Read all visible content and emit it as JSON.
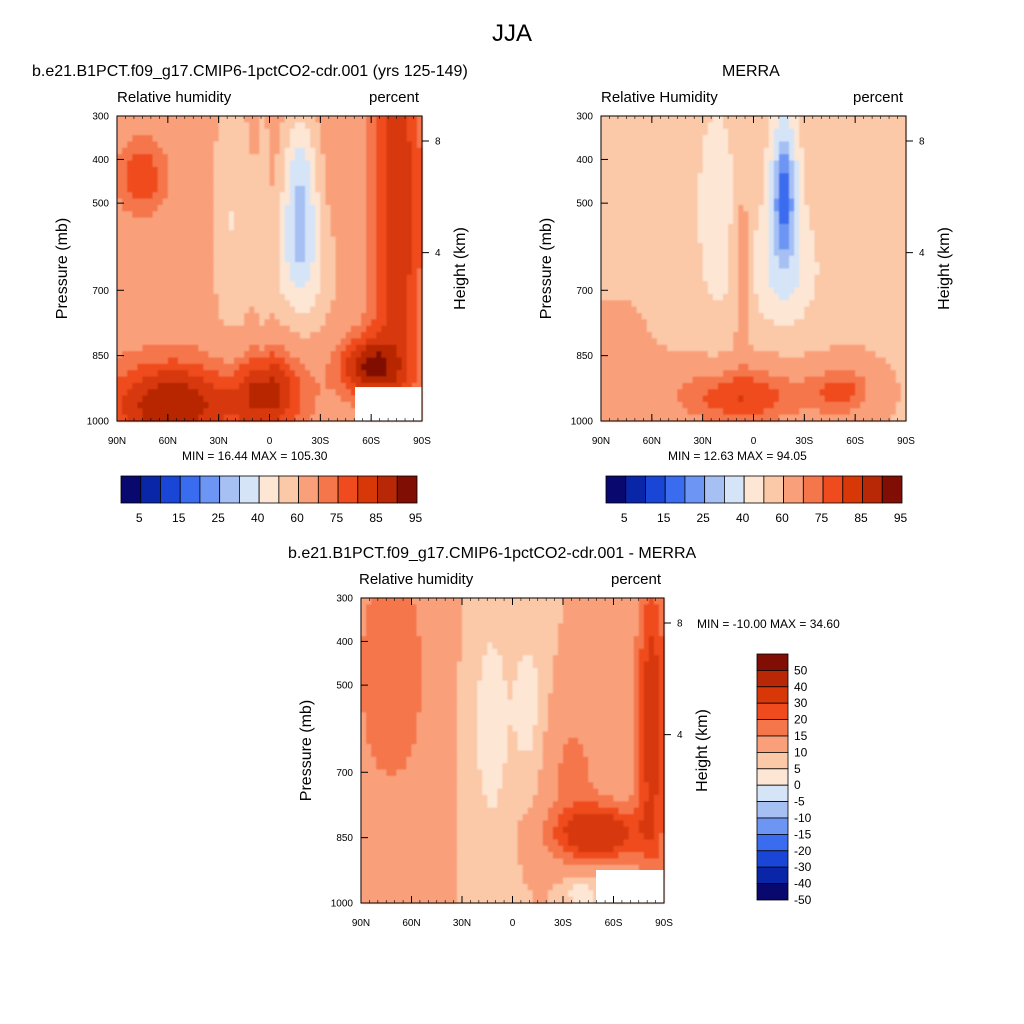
{
  "page": {
    "title": "JJA"
  },
  "chart_data": [
    {
      "type": "heatmap",
      "title": "b.e21.B1PCT.f09_g17.CMIP6-1pctCO2-cdr.001 (yrs 125-149)",
      "left_string": "Relative humidity",
      "right_string": "percent",
      "x_tick_labels": [
        "90N",
        "60N",
        "30N",
        "0",
        "30S",
        "60S",
        "90S"
      ],
      "y_tick_labels": [
        "300",
        "400",
        "500",
        "700",
        "850",
        "1000"
      ],
      "y_label": "Pressure (mb)",
      "y2_tick_labels": [
        "8",
        "4"
      ],
      "y2_label": "Height (km)",
      "stats": "MIN = 16.44  MAX = 105.30",
      "min": 16.44,
      "max": 105.3,
      "colorbar_labels": [
        "5",
        "15",
        "25",
        "40",
        "60",
        "75",
        "85",
        "95"
      ]
    },
    {
      "type": "heatmap",
      "title": "MERRA",
      "left_string": "Relative Humidity",
      "right_string": "percent",
      "x_tick_labels": [
        "90N",
        "60N",
        "30N",
        "0",
        "30S",
        "60S",
        "90S"
      ],
      "y_tick_labels": [
        "300",
        "400",
        "500",
        "700",
        "850",
        "1000"
      ],
      "y_label": "Pressure (mb)",
      "y2_tick_labels": [
        "8",
        "4"
      ],
      "y2_label": "Height (km)",
      "stats": "MIN = 12.63  MAX = 94.05",
      "min": 12.63,
      "max": 94.05,
      "colorbar_labels": [
        "5",
        "15",
        "25",
        "40",
        "60",
        "75",
        "85",
        "95"
      ]
    },
    {
      "type": "heatmap",
      "title": "b.e21.B1PCT.f09_g17.CMIP6-1pctCO2-cdr.001 - MERRA",
      "left_string": "Relative humidity",
      "right_string": "percent",
      "x_tick_labels": [
        "90N",
        "60N",
        "30N",
        "0",
        "30S",
        "60S",
        "90S"
      ],
      "y_tick_labels": [
        "300",
        "400",
        "500",
        "700",
        "850",
        "1000"
      ],
      "y_label": "Pressure (mb)",
      "y2_tick_labels": [
        "8",
        "4"
      ],
      "y2_label": "Height (km)",
      "stats": "MIN = -10.00  MAX =  34.60",
      "min": -10.0,
      "max": 34.6,
      "colorbar_labels": [
        "50",
        "40",
        "30",
        "20",
        "15",
        "10",
        "5",
        "0",
        "-5",
        "-10",
        "-15",
        "-20",
        "-30",
        "-40",
        "-50"
      ]
    }
  ],
  "palettes": {
    "abs": [
      "#08086e",
      "#0a26a8",
      "#1a46d8",
      "#3a6cf0",
      "#6d96f4",
      "#a6c0f4",
      "#d6e4f8",
      "#fde6d4",
      "#fbc8a8",
      "#f9a07a",
      "#f6764c",
      "#ef4b1e",
      "#d83808",
      "#b82806",
      "#800e04"
    ],
    "diff": [
      "#800e04",
      "#b82806",
      "#d83808",
      "#ef4b1e",
      "#f6764c",
      "#f9a07a",
      "#fbc8a8",
      "#fde6d4",
      "#d6e4f8",
      "#a6c0f4",
      "#6d96f4",
      "#3a6cf0",
      "#1a46d8",
      "#0a26a8",
      "#08086e"
    ]
  }
}
